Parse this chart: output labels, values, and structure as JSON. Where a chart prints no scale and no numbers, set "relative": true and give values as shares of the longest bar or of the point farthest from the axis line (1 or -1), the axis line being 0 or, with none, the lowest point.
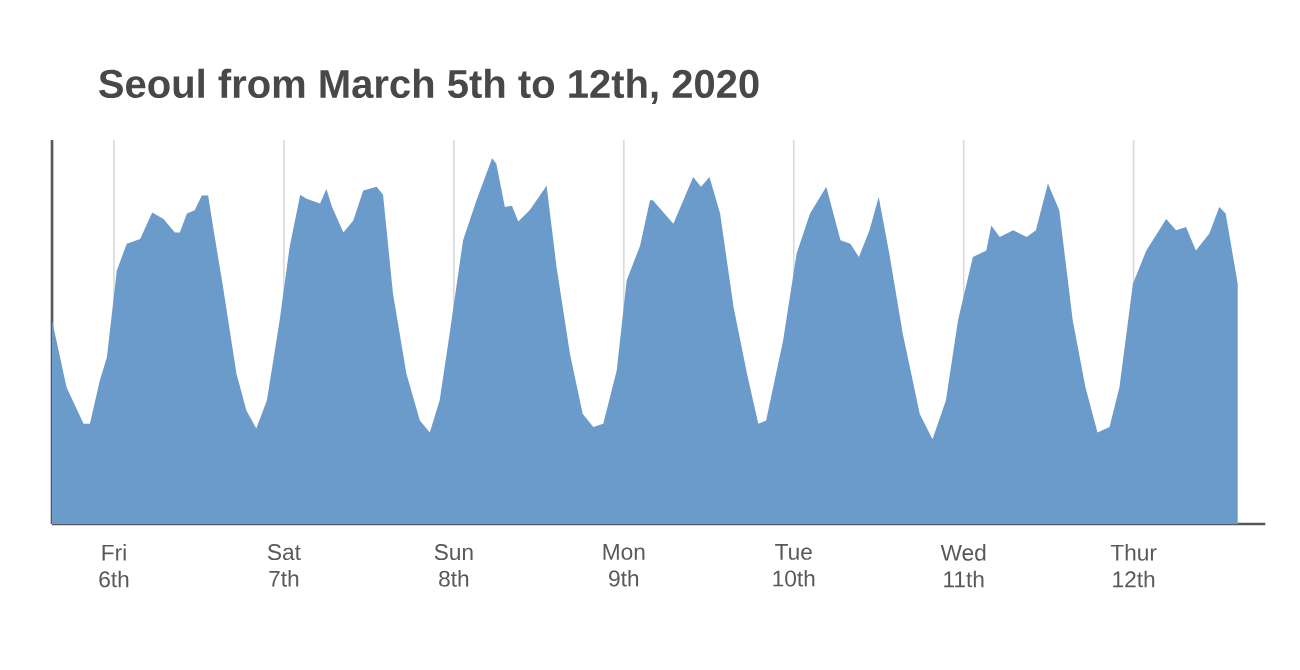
{
  "chart_data": {
    "type": "area",
    "title": "Seoul from March 5th to 12th, 2020",
    "relative": true,
    "grid": "x",
    "color": "#6a9bcb",
    "xlim": [
      "2020-03-05T15:15",
      "2020-03-12T18:36"
    ],
    "xticks": [
      {
        "value": "2020-03-06T00:00",
        "label": "Fri 6th"
      },
      {
        "value": "2020-03-07T00:00",
        "label": "Sat 7th"
      },
      {
        "value": "2020-03-08T00:00",
        "label": "Sun 8th"
      },
      {
        "value": "2020-03-09T00:00",
        "label": "Mon 9th"
      },
      {
        "value": "2020-03-10T00:00",
        "label": "Tue 10th"
      },
      {
        "value": "2020-03-11T00:00",
        "label": "Wed 11th"
      },
      {
        "value": "2020-03-12T00:00",
        "label": "Thur 12th"
      }
    ],
    "x": [
      "2020-03-05T15:15",
      "2020-03-05T17:18",
      "2020-03-05T19:42",
      "2020-03-05T20:36",
      "2020-03-05T22:00",
      "2020-03-05T23:00",
      "2020-03-06T00:24",
      "2020-03-06T01:48",
      "2020-03-06T03:42",
      "2020-03-06T05:24",
      "2020-03-06T07:00",
      "2020-03-06T08:36",
      "2020-03-06T09:18",
      "2020-03-06T10:18",
      "2020-03-06T11:24",
      "2020-03-06T12:24",
      "2020-03-06T13:18",
      "2020-03-06T14:00",
      "2020-03-06T15:24",
      "2020-03-06T17:18",
      "2020-03-06T18:42",
      "2020-03-06T20:06",
      "2020-03-06T21:36",
      "2020-03-06T23:24",
      "2020-03-07T00:48",
      "2020-03-07T02:18",
      "2020-03-07T03:12",
      "2020-03-07T05:06",
      "2020-03-07T06:00",
      "2020-03-07T06:48",
      "2020-03-07T08:24",
      "2020-03-07T09:48",
      "2020-03-07T11:12",
      "2020-03-07T13:06",
      "2020-03-07T14:00",
      "2020-03-07T15:24",
      "2020-03-07T17:18",
      "2020-03-07T19:12",
      "2020-03-07T20:36",
      "2020-03-07T22:00",
      "2020-03-07T23:24",
      "2020-03-08T01:18",
      "2020-03-08T03:12",
      "2020-03-08T05:24",
      "2020-03-08T06:00",
      "2020-03-08T07:12",
      "2020-03-08T08:12",
      "2020-03-08T09:06",
      "2020-03-08T10:42",
      "2020-03-08T13:06",
      "2020-03-08T14:30",
      "2020-03-08T16:24",
      "2020-03-08T18:12",
      "2020-03-08T19:42",
      "2020-03-08T21:06",
      "2020-03-08T23:00",
      "2020-03-09T00:24",
      "2020-03-09T02:18",
      "2020-03-09T03:42",
      "2020-03-09T04:06",
      "2020-03-09T07:00",
      "2020-03-09T09:48",
      "2020-03-09T10:54",
      "2020-03-09T12:06",
      "2020-03-09T13:36",
      "2020-03-09T15:30",
      "2020-03-09T17:24",
      "2020-03-09T19:00",
      "2020-03-09T20:06",
      "2020-03-09T22:30",
      "2020-03-10T00:24",
      "2020-03-10T02:18",
      "2020-03-10T04:36",
      "2020-03-10T06:36",
      "2020-03-10T08:00",
      "2020-03-10T09:12",
      "2020-03-10T10:42",
      "2020-03-10T12:00",
      "2020-03-10T13:30",
      "2020-03-10T15:24",
      "2020-03-10T17:48",
      "2020-03-10T19:36",
      "2020-03-10T21:30",
      "2020-03-10T23:12",
      "2020-03-11T01:18",
      "2020-03-11T03:12",
      "2020-03-11T03:54",
      "2020-03-11T05:06",
      "2020-03-11T07:00",
      "2020-03-11T08:54",
      "2020-03-11T10:12",
      "2020-03-11T11:54",
      "2020-03-11T13:30",
      "2020-03-11T15:24",
      "2020-03-11T17:12",
      "2020-03-11T18:54",
      "2020-03-11T20:36",
      "2020-03-11T22:00",
      "2020-03-11T23:54",
      "2020-03-12T01:48",
      "2020-03-12T04:36",
      "2020-03-12T06:00",
      "2020-03-12T07:24",
      "2020-03-12T08:48",
      "2020-03-12T10:42",
      "2020-03-12T12:06",
      "2020-03-12T13:00",
      "2020-03-12T14:42"
    ],
    "values": [
      0.557,
      0.374,
      0.274,
      0.274,
      0.392,
      0.456,
      0.693,
      0.766,
      0.779,
      0.852,
      0.834,
      0.797,
      0.797,
      0.849,
      0.858,
      0.898,
      0.898,
      0.812,
      0.648,
      0.411,
      0.31,
      0.261,
      0.338,
      0.557,
      0.757,
      0.9,
      0.889,
      0.876,
      0.916,
      0.867,
      0.797,
      0.83,
      0.912,
      0.922,
      0.9,
      0.63,
      0.411,
      0.283,
      0.25,
      0.338,
      0.52,
      0.776,
      0.885,
      1.0,
      0.985,
      0.867,
      0.87,
      0.827,
      0.858,
      0.925,
      0.703,
      0.465,
      0.301,
      0.265,
      0.274,
      0.42,
      0.666,
      0.761,
      0.885,
      0.885,
      0.821,
      0.949,
      0.922,
      0.949,
      0.849,
      0.593,
      0.411,
      0.274,
      0.283,
      0.502,
      0.739,
      0.849,
      0.922,
      0.776,
      0.766,
      0.73,
      0.803,
      0.894,
      0.739,
      0.52,
      0.301,
      0.232,
      0.338,
      0.557,
      0.73,
      0.748,
      0.816,
      0.785,
      0.803,
      0.785,
      0.803,
      0.931,
      0.858,
      0.557,
      0.374,
      0.25,
      0.265,
      0.374,
      0.657,
      0.748,
      0.834,
      0.803,
      0.812,
      0.748,
      0.794,
      0.867,
      0.849,
      0.657
    ]
  }
}
